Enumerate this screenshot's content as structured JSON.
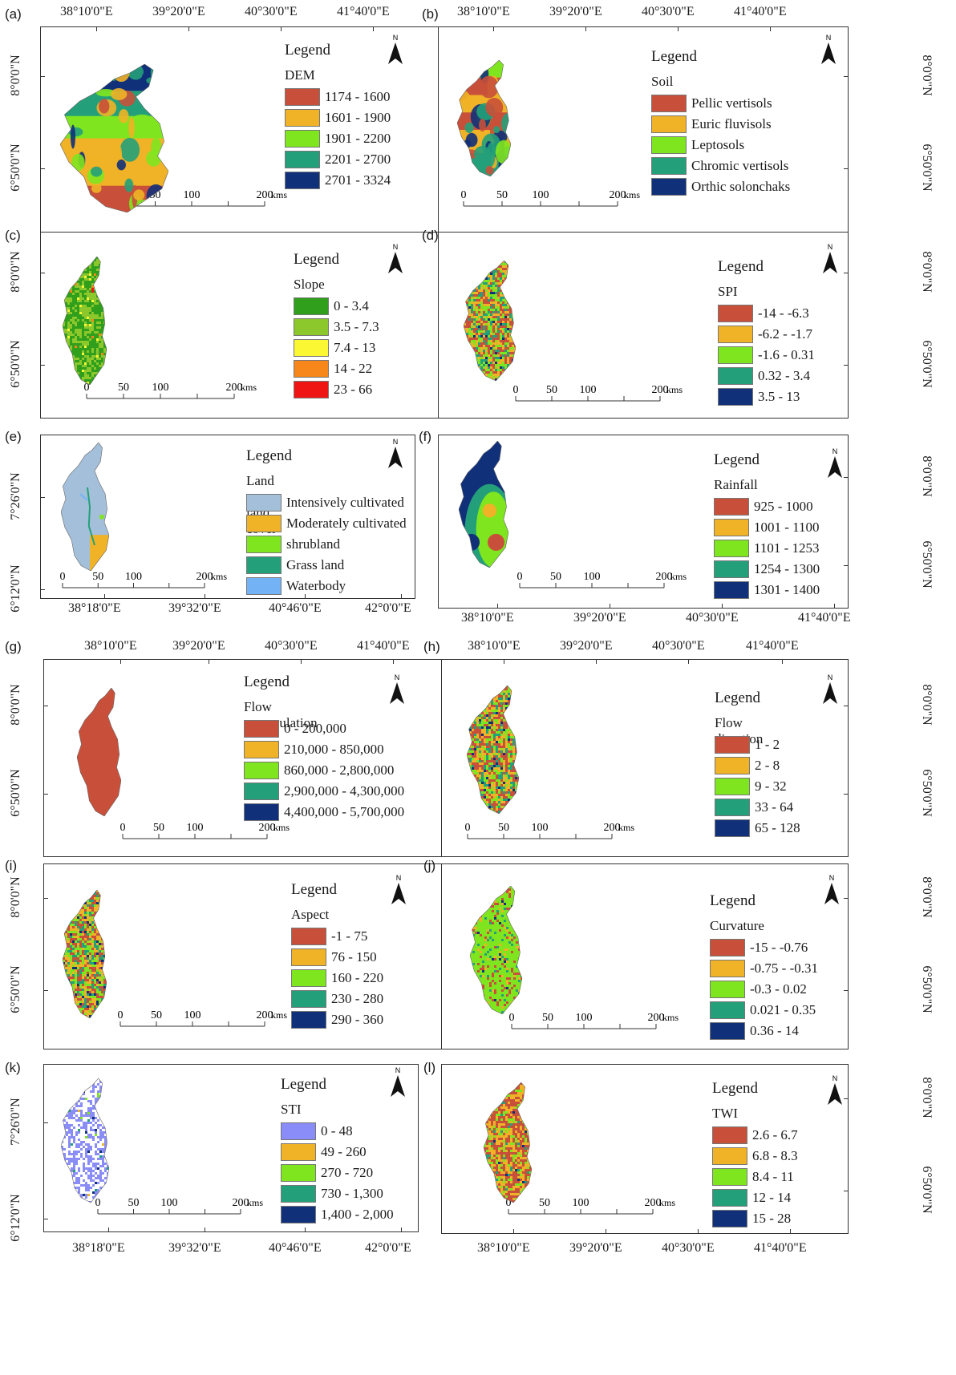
{
  "colors": {
    "c1": "#c8503a",
    "c2": "#f0b226",
    "c3": "#7fe51f",
    "c4": "#23a07a",
    "c5": "#11307a",
    "slope1": "#2f9f1c",
    "slope2": "#8cc72b",
    "slope3": "#fbf733",
    "slope4": "#f7871a",
    "slope5": "#f01515",
    "lulc1": "#a3bfd9",
    "lulc5": "#73b3f5",
    "sti1": "#8a8cf7"
  },
  "north_label": "N",
  "scale": {
    "labels": [
      "0",
      "50",
      "100",
      "200"
    ],
    "unit": "kms"
  },
  "panels": [
    {
      "letter": "(a)",
      "top_coords": [
        "38°10'0\"E",
        "39°20'0\"E",
        "40°30'0\"E",
        "41°40'0\"E"
      ],
      "side_coords": [
        "8°0'0\"N",
        "6°50'0\"N"
      ],
      "legend_title": "Legend",
      "variable": "DEM",
      "classes": [
        {
          "label": "1174 - 1600",
          "color": "#c8503a"
        },
        {
          "label": "1601 - 1900",
          "color": "#f0b226"
        },
        {
          "label": "1901 - 2200",
          "color": "#7fe51f"
        },
        {
          "label": "2201 - 2700",
          "color": "#23a07a"
        },
        {
          "label": "2701 - 3324",
          "color": "#11307a"
        }
      ]
    },
    {
      "letter": "(b)",
      "top_coords": [
        "38°10'0\"E",
        "39°20'0\"E",
        "40°30'0\"E",
        "41°40'0\"E"
      ],
      "side_coords": [
        "8°0'0\"N",
        "6°50'0\"N"
      ],
      "legend_title": "Legend",
      "variable": "Soil",
      "classes": [
        {
          "label": "Pellic vertisols",
          "color": "#c8503a"
        },
        {
          "label": "Euric fluvisols",
          "color": "#f0b226"
        },
        {
          "label": "Leptosols",
          "color": "#7fe51f"
        },
        {
          "label": "Chromic vertisols",
          "color": "#23a07a"
        },
        {
          "label": "Orthic solonchaks",
          "color": "#11307a"
        }
      ]
    },
    {
      "letter": "(c)",
      "side_coords": [
        "8°0'0\"N",
        "6°50'0\"N"
      ],
      "legend_title": "Legend",
      "variable": "Slope",
      "classes": [
        {
          "label": "0 - 3.4",
          "color": "#2f9f1c"
        },
        {
          "label": "3.5 - 7.3",
          "color": "#8cc72b"
        },
        {
          "label": "7.4 - 13",
          "color": "#fbf733"
        },
        {
          "label": "14 - 22",
          "color": "#f7871a"
        },
        {
          "label": "23 - 66",
          "color": "#f01515"
        }
      ]
    },
    {
      "letter": "(d)",
      "side_coords": [
        "8°0'0\"N",
        "6°50'0\"N"
      ],
      "legend_title": "Legend",
      "variable": "SPI",
      "classes": [
        {
          "label": "-14 - -6.3",
          "color": "#c8503a"
        },
        {
          "label": "-6.2 - -1.7",
          "color": "#f0b226"
        },
        {
          "label": "-1.6 - 0.31",
          "color": "#7fe51f"
        },
        {
          "label": "0.32 - 3.4",
          "color": "#23a07a"
        },
        {
          "label": "3.5 - 13",
          "color": "#11307a"
        }
      ]
    },
    {
      "letter": "(e)",
      "bottom_coords": [
        "38°18'0\"E",
        "39°32'0\"E",
        "40°46'0\"E",
        "42°0'0\"E"
      ],
      "side_coords": [
        "7°26'0\"N",
        "6°12'0\"N"
      ],
      "legend_title": "Legend",
      "variable": "Land use land cover",
      "classes": [
        {
          "label": "Intensively cultivated",
          "color": "#a3bfd9"
        },
        {
          "label": "Moderately cultivated",
          "color": "#f0b226"
        },
        {
          "label": "shrubland",
          "color": "#7fe51f"
        },
        {
          "label": "Grass land",
          "color": "#23a07a"
        },
        {
          "label": "Waterbody",
          "color": "#73b3f5"
        }
      ]
    },
    {
      "letter": "(f)",
      "bottom_coords": [
        "38°10'0\"E",
        "39°20'0\"E",
        "40°30'0\"E",
        "41°40'0\"E"
      ],
      "side_coords": [
        "8°0'0\"N",
        "6°50'0\"N"
      ],
      "legend_title": "Legend",
      "variable": "Rainfall",
      "classes": [
        {
          "label": "925 - 1000",
          "color": "#c8503a"
        },
        {
          "label": "1001 - 1100",
          "color": "#f0b226"
        },
        {
          "label": "1101 - 1253",
          "color": "#7fe51f"
        },
        {
          "label": "1254 - 1300",
          "color": "#23a07a"
        },
        {
          "label": "1301 - 1400",
          "color": "#11307a"
        }
      ]
    },
    {
      "letter": "(g)",
      "top_coords": [
        "38°10'0\"E",
        "39°20'0\"E",
        "40°30'0\"E",
        "41°40'0\"E"
      ],
      "side_coords": [
        "8°0'0\"N",
        "6°50'0\"N"
      ],
      "legend_title": "Legend",
      "variable": "Flow accumulation",
      "classes": [
        {
          "label": "0 - 200,000",
          "color": "#c8503a"
        },
        {
          "label": "210,000 - 850,000",
          "color": "#f0b226"
        },
        {
          "label": "860,000 - 2,800,000",
          "color": "#7fe51f"
        },
        {
          "label": "2,900,000 - 4,300,000",
          "color": "#23a07a"
        },
        {
          "label": "4,400,000 - 5,700,000",
          "color": "#11307a"
        }
      ]
    },
    {
      "letter": "(h)",
      "top_coords": [
        "38°10'0\"E",
        "39°20'0\"E",
        "40°30'0\"E",
        "41°40'0\"E"
      ],
      "side_coords": [
        "8°0'0\"N",
        "6°50'0\"N"
      ],
      "legend_title": "Legend",
      "variable": "Flow direction",
      "classes": [
        {
          "label": "1 - 2",
          "color": "#c8503a"
        },
        {
          "label": "2 - 8",
          "color": "#f0b226"
        },
        {
          "label": "9 - 32",
          "color": "#7fe51f"
        },
        {
          "label": "33 - 64",
          "color": "#23a07a"
        },
        {
          "label": "65 - 128",
          "color": "#11307a"
        }
      ]
    },
    {
      "letter": "(i)",
      "side_coords": [
        "8°0'0\"N",
        "6°50'0\"N"
      ],
      "legend_title": "Legend",
      "variable": "Aspect",
      "classes": [
        {
          "label": "-1 - 75",
          "color": "#c8503a"
        },
        {
          "label": "76 - 150",
          "color": "#f0b226"
        },
        {
          "label": "160 - 220",
          "color": "#7fe51f"
        },
        {
          "label": "230 - 280",
          "color": "#23a07a"
        },
        {
          "label": "290 - 360",
          "color": "#11307a"
        }
      ]
    },
    {
      "letter": "(j)",
      "side_coords": [
        "8°0'0\"N",
        "6°50'0\"N"
      ],
      "legend_title": "Legend",
      "variable": "Curvature",
      "classes": [
        {
          "label": "-15 - -0.76",
          "color": "#c8503a"
        },
        {
          "label": "-0.75 - -0.31",
          "color": "#f0b226"
        },
        {
          "label": "-0.3 - 0.02",
          "color": "#7fe51f"
        },
        {
          "label": "0.021 - 0.35",
          "color": "#23a07a"
        },
        {
          "label": "0.36 - 14",
          "color": "#11307a"
        }
      ]
    },
    {
      "letter": "(k)",
      "bottom_coords": [
        "38°18'0\"E",
        "39°32'0\"E",
        "40°46'0\"E",
        "42°0'0\"E"
      ],
      "side_coords": [
        "7°26'0\"N",
        "6°12'0\"N"
      ],
      "legend_title": "Legend",
      "variable": "STI",
      "classes": [
        {
          "label": "0 - 48",
          "color": "#8a8cf7"
        },
        {
          "label": "49 - 260",
          "color": "#f0b226"
        },
        {
          "label": "270 - 720",
          "color": "#7fe51f"
        },
        {
          "label": "730 - 1,300",
          "color": "#23a07a"
        },
        {
          "label": "1,400 - 2,000",
          "color": "#11307a"
        }
      ]
    },
    {
      "letter": "(l)",
      "bottom_coords": [
        "38°10'0\"E",
        "39°20'0\"E",
        "40°30'0\"E",
        "41°40'0\"E"
      ],
      "side_coords": [
        "8°0'0\"N",
        "6°50'0\"N"
      ],
      "legend_title": "Legend",
      "variable": "TWI",
      "classes": [
        {
          "label": "2.6 - 6.7",
          "color": "#c8503a"
        },
        {
          "label": "6.8 - 8.3",
          "color": "#f0b226"
        },
        {
          "label": "8.4 - 11",
          "color": "#7fe51f"
        },
        {
          "label": "12 - 14",
          "color": "#23a07a"
        },
        {
          "label": "15 - 28",
          "color": "#11307a"
        }
      ]
    }
  ]
}
